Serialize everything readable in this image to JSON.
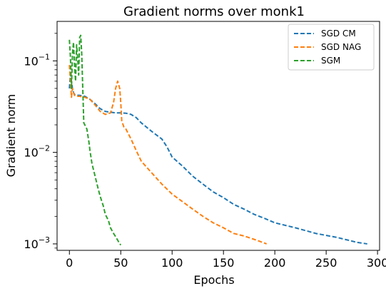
{
  "chart_data": {
    "type": "line",
    "title": "Gradient norms over monk1",
    "xlabel": "Epochs",
    "ylabel": "Gradient norm",
    "yscale": "log",
    "xlim": [
      -12,
      302
    ],
    "ylim": [
      0.00085,
      0.27
    ],
    "x_ticks": [
      0,
      50,
      100,
      150,
      200,
      250,
      300
    ],
    "y_ticks": [
      {
        "value": 0.1,
        "base": "10",
        "exp": "−1"
      },
      {
        "value": 0.01,
        "base": "10",
        "exp": "−2"
      },
      {
        "value": 0.001,
        "base": "10",
        "exp": "−3"
      }
    ],
    "grid": false,
    "legend_position": "top-right",
    "series": [
      {
        "name": "SGD CM",
        "color": "#1f77b4",
        "x": [
          0,
          1,
          2,
          3,
          4,
          5,
          7,
          10,
          15,
          20,
          25,
          30,
          35,
          40,
          45,
          50,
          55,
          60,
          65,
          70,
          80,
          90,
          95,
          100,
          110,
          120,
          130,
          140,
          150,
          160,
          170,
          180,
          190,
          200,
          220,
          240,
          260,
          280,
          290
        ],
        "y": [
          0.05,
          0.072,
          0.06,
          0.05,
          0.045,
          0.043,
          0.042,
          0.042,
          0.041,
          0.038,
          0.034,
          0.03,
          0.028,
          0.0275,
          0.027,
          0.027,
          0.0268,
          0.026,
          0.024,
          0.021,
          0.017,
          0.014,
          0.0115,
          0.0089,
          0.0071,
          0.0055,
          0.0045,
          0.0037,
          0.0032,
          0.0027,
          0.0024,
          0.0021,
          0.0019,
          0.0017,
          0.0015,
          0.0013,
          0.00118,
          0.00104,
          0.001
        ]
      },
      {
        "name": "SGD NAG",
        "color": "#ff7f0e",
        "x": [
          0,
          1,
          2,
          3,
          4,
          5,
          7,
          10,
          15,
          20,
          25,
          30,
          35,
          40,
          43,
          45,
          47,
          49,
          50,
          51,
          53,
          55,
          60,
          65,
          70,
          80,
          90,
          100,
          110,
          120,
          130,
          140,
          150,
          160,
          170,
          180,
          190,
          192
        ],
        "y": [
          0.09,
          0.06,
          0.04,
          0.05,
          0.045,
          0.042,
          0.041,
          0.041,
          0.04,
          0.038,
          0.033,
          0.028,
          0.026,
          0.027,
          0.035,
          0.05,
          0.06,
          0.05,
          0.035,
          0.022,
          0.019,
          0.018,
          0.014,
          0.0105,
          0.008,
          0.006,
          0.0045,
          0.0035,
          0.0029,
          0.0024,
          0.002,
          0.0017,
          0.0015,
          0.0013,
          0.00122,
          0.00112,
          0.00102,
          0.001
        ]
      },
      {
        "name": "SGM",
        "color": "#2ca02c",
        "x": [
          0,
          1,
          2,
          3,
          4,
          5,
          6,
          7,
          8,
          9,
          10,
          11,
          12,
          13,
          14,
          15,
          17,
          19,
          20,
          22,
          25,
          28,
          30,
          33,
          35,
          38,
          40,
          43,
          45,
          48,
          50
        ],
        "y": [
          0.17,
          0.11,
          0.05,
          0.12,
          0.16,
          0.09,
          0.06,
          0.15,
          0.11,
          0.07,
          0.18,
          0.19,
          0.12,
          0.05,
          0.021,
          0.02,
          0.018,
          0.013,
          0.0105,
          0.0075,
          0.0055,
          0.004,
          0.0033,
          0.0026,
          0.0021,
          0.0018,
          0.0015,
          0.0013,
          0.0012,
          0.00105,
          0.00097
        ]
      }
    ]
  }
}
